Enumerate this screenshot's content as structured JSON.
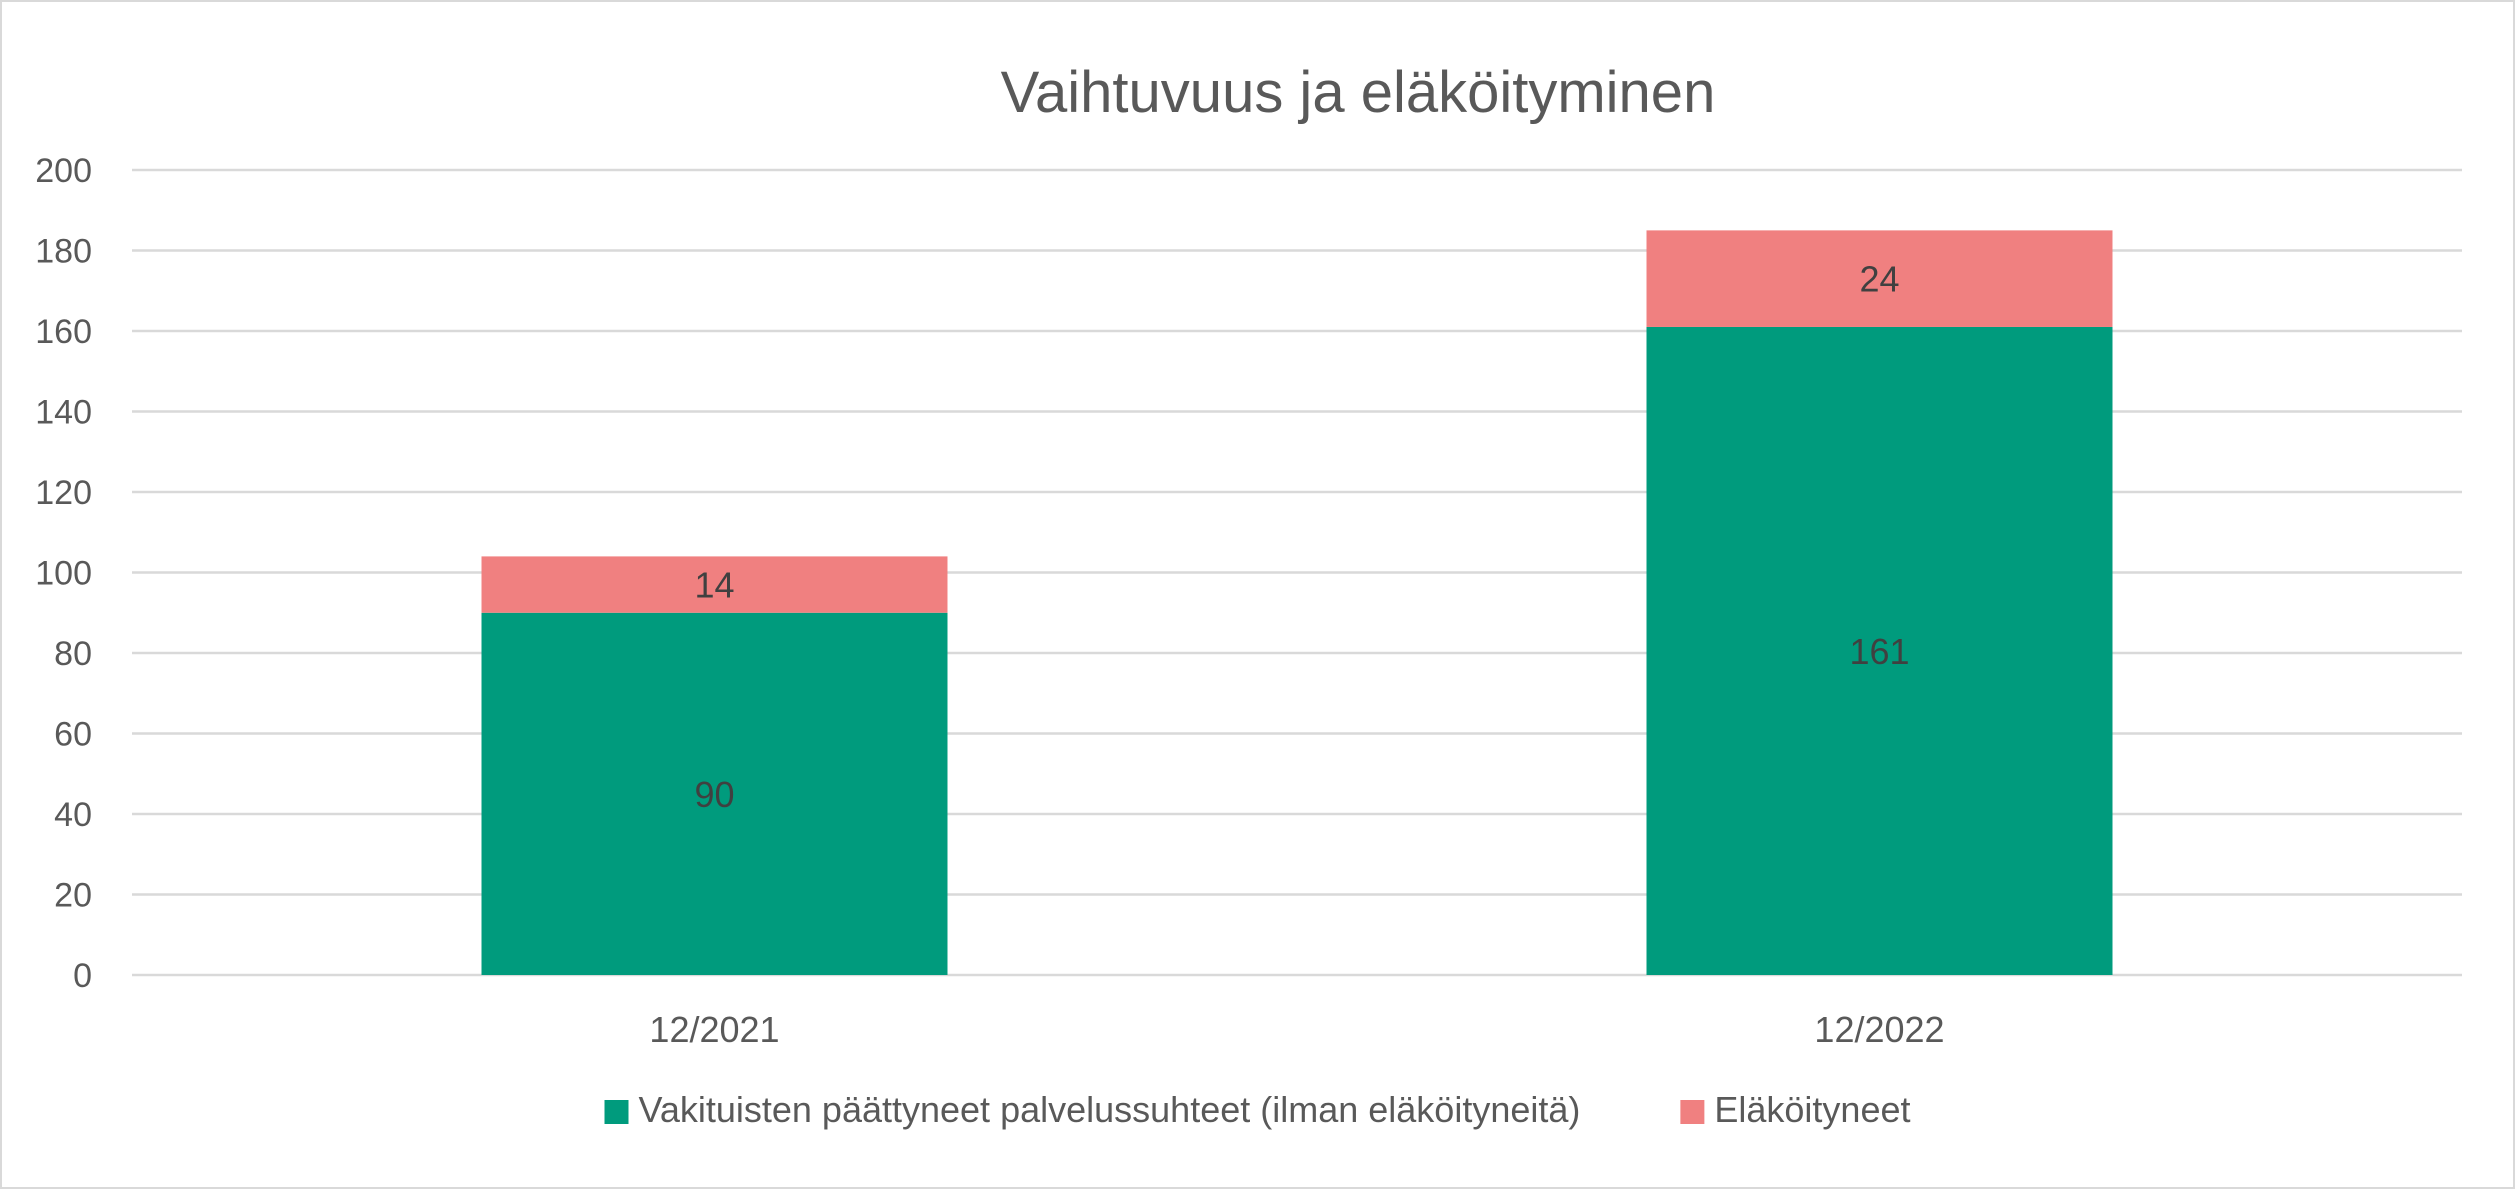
{
  "chart_data": {
    "type": "bar",
    "stacked": true,
    "title": "Vaihtuvuus ja eläköityminen",
    "categories": [
      "12/2021",
      "12/2022"
    ],
    "series": [
      {
        "name": "Vakituisten päättyneet palvelussuhteet (ilman eläköityneitä)",
        "values": [
          90,
          161
        ],
        "color": "#009b7d"
      },
      {
        "name": "Eläköityneet",
        "values": [
          14,
          24
        ],
        "color": "#f08080"
      }
    ],
    "ylim": [
      0,
      200
    ],
    "yticks": [
      0,
      20,
      40,
      60,
      80,
      100,
      120,
      140,
      160,
      180,
      200
    ],
    "grid": true,
    "legend_position": "bottom",
    "data_labels": true
  }
}
